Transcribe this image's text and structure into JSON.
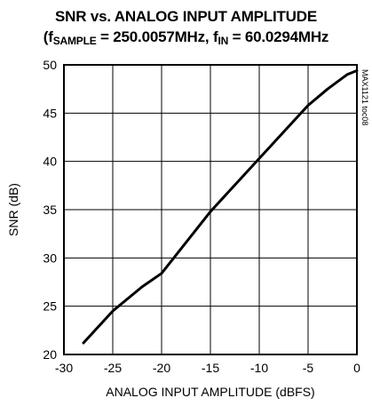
{
  "title_line1": "SNR vs. ANALOG INPUT AMPLITUDE",
  "title_line2": {
    "open": "(f",
    "sub1": "SAMPLE",
    "mid": " = 250.0057MHz, f",
    "sub2": "IN",
    "end": " = 60.0294MHz"
  },
  "side_note": "MAX1121 toc08",
  "chart_data": {
    "type": "line",
    "xlabel": "ANALOG INPUT AMPLITUDE (dBFS)",
    "ylabel": "SNR (dB)",
    "xlim": [
      -30,
      0
    ],
    "ylim": [
      20,
      50
    ],
    "x_ticks": [
      -30,
      -25,
      -20,
      -15,
      -10,
      -5,
      0
    ],
    "y_ticks": [
      20,
      25,
      30,
      35,
      40,
      45,
      50
    ],
    "grid": true,
    "series": [
      {
        "x": [
          -28,
          -25,
          -22,
          -20,
          -15,
          -10,
          -5,
          -3,
          -1,
          0
        ],
        "y": [
          21.2,
          24.5,
          27.0,
          28.4,
          34.8,
          40.3,
          45.8,
          47.5,
          49.0,
          49.4
        ]
      }
    ]
  }
}
